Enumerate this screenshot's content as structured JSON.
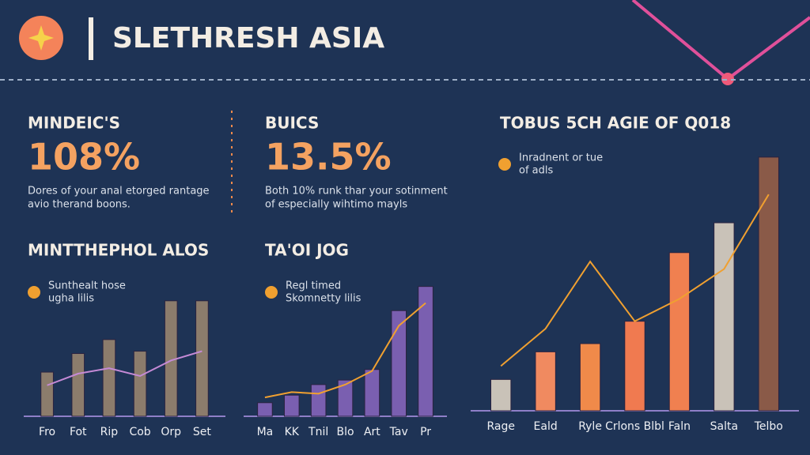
{
  "header": {
    "title": "SLETHRESH ASIA"
  },
  "kpis": [
    {
      "label": "MINDEIC'S",
      "value": "108%",
      "text": [
        "Dores of your anal etorged rantage",
        "avio therand boons."
      ]
    },
    {
      "label": "BUICS",
      "value": "13.5%",
      "text": [
        "Both 10% runk thar your sotinment",
        "of especially wihtimo mayls"
      ]
    }
  ],
  "chart_data": [
    {
      "type": "bar",
      "title": "MINTTHEPHOL ALOS",
      "legend_text": [
        "Sunthealt hose",
        "ugha lilis"
      ],
      "categories": [
        "Fro",
        "Fot",
        "Rip",
        "Cob",
        "Orp",
        "Set"
      ],
      "values": [
        57,
        81,
        99,
        84,
        149,
        149
      ],
      "color": "#8c7c6c",
      "series": [
        {
          "name": "Sunthealt hose ugha lilis",
          "color": "#c58ad6",
          "values": [
            40,
            55,
            62,
            52,
            72,
            84
          ]
        }
      ],
      "ylim": [
        0,
        160
      ]
    },
    {
      "type": "bar",
      "title": "TA'OI JOG",
      "legend_text": [
        "Regl timed",
        "Skomnetty lilis"
      ],
      "categories": [
        "Ma",
        "KK",
        "Tnil",
        "Blo",
        "Art",
        "Tav",
        "Pr"
      ],
      "values": [
        18,
        28,
        42,
        48,
        62,
        140,
        172
      ],
      "color": "#7a5fb0",
      "series": [
        {
          "name": "Regl timed Skomnetty lilis",
          "color": "#f0a030",
          "values": [
            25,
            32,
            30,
            42,
            60,
            120,
            150
          ]
        }
      ],
      "ylim": [
        0,
        180
      ]
    },
    {
      "type": "bar",
      "title": "TOBUS 5CH AGIE OF Q018",
      "legend_text": [
        "Inradnent or tue",
        "of adls"
      ],
      "categories": [
        "Rage",
        "Eald",
        "Ryle",
        "Crlons Blbl",
        "Faln",
        "Salta",
        "Telbo"
      ],
      "values": [
        42,
        79,
        90,
        120,
        212,
        252,
        340
      ],
      "colors": [
        "#c9c2b8",
        "#f08a60",
        "#f08a4a",
        "#f07a50",
        "#f08050",
        "#c9c2b8",
        "#8a5a48"
      ],
      "series": [
        {
          "name": "Inradnent or tue of adls",
          "color": "#f0a030",
          "values": [
            60,
            110,
            200,
            120,
            150,
            190,
            290
          ]
        }
      ],
      "ylim": [
        0,
        360
      ]
    }
  ]
}
